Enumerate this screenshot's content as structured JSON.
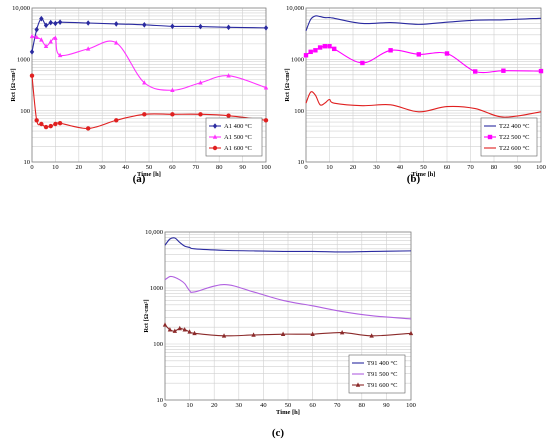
{
  "chart_data": [
    {
      "type": "line",
      "panel_label": "(a)",
      "xlabel": "Time [h]",
      "ylabel": "Rct [Ω·cm²]",
      "xlim": [
        0,
        100
      ],
      "ylim": [
        10,
        10000
      ],
      "yscale": "log",
      "x_ticks": [
        0,
        10,
        20,
        30,
        40,
        50,
        60,
        70,
        80,
        90,
        100
      ],
      "y_ticks": [
        10,
        100,
        1000,
        10000
      ],
      "y_tick_labels": [
        "10",
        "100",
        "1000",
        "10,000"
      ],
      "grid": true,
      "legend_position": "bottom-right",
      "series": [
        {
          "name": "A1 400 °C",
          "color": "#2a2aa0",
          "marker": "diamond",
          "x": [
            0,
            2,
            4,
            6,
            8,
            10,
            12,
            24,
            36,
            48,
            60,
            72,
            84,
            100
          ],
          "y": [
            1400,
            3800,
            6200,
            4600,
            5200,
            5000,
            5300,
            5100,
            4900,
            4700,
            4400,
            4350,
            4200,
            4100
          ]
        },
        {
          "name": "A1 500 °C",
          "color": "#ff33ff",
          "marker": "triangle",
          "x": [
            0,
            2,
            4,
            6,
            8,
            10,
            12,
            24,
            36,
            48,
            60,
            72,
            84,
            100
          ],
          "y": [
            2800,
            2700,
            2400,
            1800,
            2200,
            2600,
            1200,
            1600,
            2100,
            350,
            250,
            350,
            480,
            280
          ]
        },
        {
          "name": "A1 600 °C",
          "color": "#e02020",
          "marker": "circle",
          "x": [
            0,
            2,
            4,
            6,
            8,
            10,
            12,
            24,
            36,
            48,
            60,
            72,
            84,
            100
          ],
          "y": [
            480,
            65,
            55,
            48,
            50,
            55,
            57,
            45,
            65,
            85,
            85,
            85,
            80,
            65
          ]
        }
      ]
    },
    {
      "type": "line",
      "panel_label": "(b)",
      "xlabel": "Time [h]",
      "ylabel": "Rct [Ω·cm²]",
      "xlim": [
        0,
        100
      ],
      "ylim": [
        10,
        10000
      ],
      "yscale": "log",
      "x_ticks": [
        0,
        10,
        20,
        30,
        40,
        50,
        60,
        70,
        80,
        90,
        100
      ],
      "y_ticks": [
        10,
        100,
        1000,
        10000
      ],
      "y_tick_labels": [
        "10",
        "100",
        "1000",
        "10,000"
      ],
      "grid": true,
      "legend_position": "bottom-right",
      "series": [
        {
          "name": "T22 400 °C",
          "color": "#2a2aa0",
          "marker": "none",
          "x": [
            0,
            2,
            4,
            6,
            8,
            10,
            12,
            24,
            36,
            48,
            60,
            72,
            84,
            100
          ],
          "y": [
            3600,
            6000,
            7000,
            6800,
            6500,
            6500,
            6300,
            5000,
            5200,
            4800,
            5300,
            5800,
            5900,
            6300
          ]
        },
        {
          "name": "T22 500 °C",
          "color": "#ff00ff",
          "marker": "square",
          "x": [
            0,
            2,
            4,
            6,
            8,
            10,
            12,
            24,
            36,
            48,
            60,
            72,
            84,
            100
          ],
          "y": [
            1200,
            1400,
            1500,
            1700,
            1800,
            1800,
            1600,
            850,
            1500,
            1250,
            1300,
            580,
            600,
            590
          ]
        },
        {
          "name": "T22 600 °C",
          "color": "#e02020",
          "marker": "none",
          "x": [
            0,
            2,
            4,
            6,
            8,
            10,
            12,
            24,
            36,
            48,
            60,
            72,
            84,
            100
          ],
          "y": [
            140,
            230,
            200,
            130,
            140,
            165,
            140,
            125,
            130,
            95,
            120,
            110,
            75,
            95
          ]
        }
      ]
    },
    {
      "type": "line",
      "panel_label": "(c)",
      "xlabel": "Time [h]",
      "ylabel": "Rct [Ω·cm²]",
      "xlim": [
        0,
        100
      ],
      "ylim": [
        10,
        10000
      ],
      "yscale": "log",
      "x_ticks": [
        0,
        10,
        20,
        30,
        40,
        50,
        60,
        70,
        80,
        90,
        100
      ],
      "y_ticks": [
        10,
        100,
        1000,
        10000
      ],
      "y_tick_labels": [
        "10",
        "100",
        "1000",
        "10,000"
      ],
      "grid": true,
      "legend_position": "bottom-right",
      "series": [
        {
          "name": "T91 400 °C",
          "color": "#2a2aa0",
          "marker": "none",
          "x": [
            0,
            2,
            4,
            6,
            8,
            10,
            12,
            24,
            36,
            48,
            60,
            72,
            84,
            100
          ],
          "y": [
            5800,
            7500,
            7800,
            6500,
            5600,
            5300,
            5000,
            4700,
            4600,
            4500,
            4500,
            4400,
            4500,
            4600
          ]
        },
        {
          "name": "T91 500 °C",
          "color": "#b060e0",
          "marker": "none",
          "x": [
            0,
            2,
            4,
            6,
            8,
            10,
            12,
            24,
            36,
            48,
            60,
            72,
            84,
            100
          ],
          "y": [
            1400,
            1600,
            1550,
            1400,
            1200,
            900,
            850,
            1150,
            850,
            600,
            480,
            380,
            320,
            280
          ]
        },
        {
          "name": "T91 600 °C",
          "color": "#8b2a2a",
          "marker": "triangle",
          "x": [
            0,
            2,
            4,
            6,
            8,
            10,
            12,
            24,
            36,
            48,
            60,
            72,
            84,
            100
          ],
          "y": [
            220,
            180,
            170,
            190,
            180,
            165,
            155,
            140,
            145,
            150,
            150,
            160,
            140,
            155
          ]
        }
      ]
    }
  ]
}
